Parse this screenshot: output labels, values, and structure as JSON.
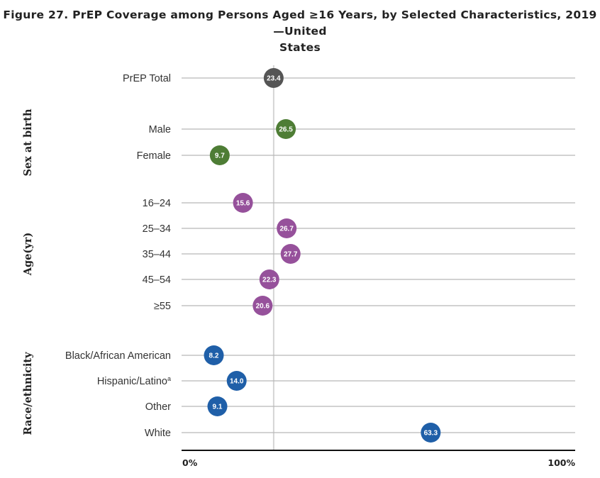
{
  "chart_data": {
    "type": "scatter",
    "title_line1": "Figure 27. PrEP Coverage among Persons Aged ≥16 Years, by Selected Characteristics, 2019—United",
    "title_line2": "States",
    "xlim": [
      0,
      100
    ],
    "x_ticks": [
      "0%",
      "100%"
    ],
    "reference_value": 23.4,
    "groups": [
      {
        "name": "",
        "color": "#555555",
        "items": [
          {
            "label": "PrEP Total",
            "value": 23.4,
            "value_label": "23.4"
          }
        ]
      },
      {
        "name": "Sex at birth",
        "color": "#4e7d35",
        "items": [
          {
            "label": "Male",
            "value": 26.5,
            "value_label": "26.5"
          },
          {
            "label": "Female",
            "value": 9.7,
            "value_label": "9.7"
          }
        ]
      },
      {
        "name": "Age(yr)",
        "color": "#96519b",
        "items": [
          {
            "label": "16–24",
            "value": 15.6,
            "value_label": "15.6"
          },
          {
            "label": "25–34",
            "value": 26.7,
            "value_label": "26.7"
          },
          {
            "label": "35–44",
            "value": 27.7,
            "value_label": "27.7"
          },
          {
            "label": "45–54",
            "value": 22.3,
            "value_label": "22.3"
          },
          {
            "label": "≥55",
            "value": 20.6,
            "value_label": "20.6"
          }
        ]
      },
      {
        "name": "Race/ethnicity",
        "color": "#1f5fa8",
        "items": [
          {
            "label": "Black/African American",
            "value": 8.2,
            "value_label": "8.2"
          },
          {
            "label": "Hispanic/Latino",
            "label_superscript": "a",
            "value": 14.0,
            "value_label": "14.0"
          },
          {
            "label": "Other",
            "value": 9.1,
            "value_label": "9.1"
          },
          {
            "label": "White",
            "value": 63.3,
            "value_label": "63.3"
          }
        ]
      }
    ]
  }
}
